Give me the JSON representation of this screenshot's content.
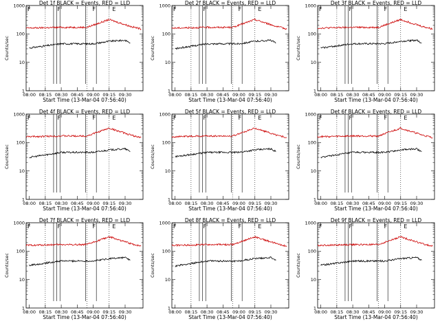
{
  "chart_data": [
    {
      "type": "line",
      "title": "Det 1f BLACK = Events, RED = LLD",
      "xlabel": "Start Time (13-Mar-04 07:56:40)",
      "ylabel": "Counts/sec",
      "x_ticks": [
        "08:00",
        "08:15",
        "08:30",
        "08:45",
        "09:00",
        "09:15",
        "09:30"
      ],
      "y_ticks": [
        "1",
        "10",
        "100",
        "1000"
      ],
      "yscale": "log",
      "ylim": [
        1,
        1000
      ],
      "flags": [
        "F",
        "F",
        "F",
        "E"
      ],
      "series": [
        {
          "color": "#000000",
          "points": [
            [
              8.0,
              32
            ],
            [
              8.5,
              45
            ],
            [
              9.0,
              45
            ],
            [
              9.25,
              55
            ],
            [
              9.5,
              60
            ],
            [
              9.58,
              48
            ]
          ]
        },
        {
          "color": "#cc0000",
          "points": [
            [
              7.95,
              160
            ],
            [
              8.5,
              170
            ],
            [
              8.9,
              170
            ],
            [
              9.25,
              320
            ],
            [
              9.6,
              180
            ],
            [
              9.75,
              150
            ]
          ]
        }
      ]
    },
    {
      "type": "line",
      "title": "Det 2f BLACK = Events, RED = LLD",
      "xlabel": "Start Time (13-Mar-04 07:56:40)",
      "ylabel": "Counts/sec",
      "x_ticks": [
        "08:00",
        "08:15",
        "08:30",
        "08:45",
        "09:00",
        "09:15",
        "09:30"
      ],
      "y_ticks": [
        "1",
        "10",
        "100",
        "1000"
      ],
      "yscale": "log",
      "ylim": [
        1,
        1000
      ],
      "flags": [
        "F",
        "F",
        "F",
        "E"
      ],
      "series": [
        {
          "color": "#000000",
          "points": [
            [
              8.0,
              30
            ],
            [
              8.5,
              45
            ],
            [
              9.0,
              45
            ],
            [
              9.25,
              55
            ],
            [
              9.5,
              60
            ],
            [
              9.58,
              48
            ]
          ]
        },
        {
          "color": "#cc0000",
          "points": [
            [
              7.95,
              160
            ],
            [
              8.5,
              170
            ],
            [
              8.9,
              170
            ],
            [
              9.25,
              320
            ],
            [
              9.6,
              180
            ],
            [
              9.75,
              150
            ]
          ]
        }
      ]
    },
    {
      "type": "line",
      "title": "Det 3f BLACK = Events, RED = LLD",
      "xlabel": "Start Time (13-Mar-04 07:56:40)",
      "ylabel": "Counts/sec",
      "x_ticks": [
        "08:00",
        "08:15",
        "08:30",
        "08:45",
        "09:00",
        "09:15",
        "09:30"
      ],
      "y_ticks": [
        "1",
        "10",
        "100",
        "1000"
      ],
      "yscale": "log",
      "ylim": [
        1,
        1000
      ],
      "flags": [
        "F",
        "F",
        "F",
        "E"
      ],
      "series": [
        {
          "color": "#000000",
          "points": [
            [
              8.0,
              32
            ],
            [
              8.5,
              45
            ],
            [
              9.0,
              45
            ],
            [
              9.25,
              55
            ],
            [
              9.5,
              60
            ],
            [
              9.58,
              48
            ]
          ]
        },
        {
          "color": "#cc0000",
          "points": [
            [
              7.95,
              160
            ],
            [
              8.5,
              170
            ],
            [
              8.9,
              170
            ],
            [
              9.25,
              320
            ],
            [
              9.6,
              180
            ],
            [
              9.75,
              150
            ]
          ]
        }
      ]
    },
    {
      "type": "line",
      "title": "Det 4f BLACK = Events, RED = LLD",
      "xlabel": "Start Time (13-Mar-04 07:56:40)",
      "ylabel": "Counts/sec",
      "x_ticks": [
        "08:00",
        "08:15",
        "08:30",
        "08:45",
        "09:00",
        "09:15",
        "09:30"
      ],
      "y_ticks": [
        "1",
        "10",
        "100",
        "1000"
      ],
      "yscale": "log",
      "ylim": [
        1,
        1000
      ],
      "flags": [
        "F",
        "F",
        "F",
        "E"
      ],
      "series": [
        {
          "color": "#000000",
          "points": [
            [
              8.0,
              30
            ],
            [
              8.5,
              45
            ],
            [
              9.0,
              45
            ],
            [
              9.25,
              55
            ],
            [
              9.5,
              60
            ],
            [
              9.58,
              48
            ]
          ]
        },
        {
          "color": "#cc0000",
          "points": [
            [
              7.95,
              160
            ],
            [
              8.5,
              170
            ],
            [
              8.9,
              170
            ],
            [
              9.25,
              320
            ],
            [
              9.6,
              180
            ],
            [
              9.75,
              150
            ]
          ]
        }
      ]
    },
    {
      "type": "line",
      "title": "Det 5f BLACK = Events, RED = LLD",
      "xlabel": "Start Time (13-Mar-04 07:56:40)",
      "ylabel": "Counts/sec",
      "x_ticks": [
        "08:00",
        "08:15",
        "08:30",
        "08:45",
        "09:00",
        "09:15",
        "09:30"
      ],
      "y_ticks": [
        "1",
        "10",
        "100",
        "1000"
      ],
      "yscale": "log",
      "ylim": [
        1,
        1000
      ],
      "flags": [
        "F",
        "F",
        "F",
        "E"
      ],
      "series": [
        {
          "color": "#000000",
          "points": [
            [
              8.0,
              32
            ],
            [
              8.5,
              45
            ],
            [
              9.0,
              45
            ],
            [
              9.25,
              55
            ],
            [
              9.5,
              60
            ],
            [
              9.58,
              48
            ]
          ]
        },
        {
          "color": "#cc0000",
          "points": [
            [
              7.95,
              160
            ],
            [
              8.5,
              170
            ],
            [
              8.9,
              170
            ],
            [
              9.25,
              320
            ],
            [
              9.6,
              180
            ],
            [
              9.75,
              150
            ]
          ]
        }
      ]
    },
    {
      "type": "line",
      "title": "Det 6f BLACK = Events, RED = LLD",
      "xlabel": "Start Time (13-Mar-04 07:56:40)",
      "ylabel": "Counts/sec",
      "x_ticks": [
        "08:00",
        "08:15",
        "08:30",
        "08:45",
        "09:00",
        "09:15",
        "09:30"
      ],
      "y_ticks": [
        "1",
        "10",
        "100",
        "1000"
      ],
      "yscale": "log",
      "ylim": [
        1,
        1000
      ],
      "flags": [
        "F",
        "F",
        "F",
        "E"
      ],
      "series": [
        {
          "color": "#000000",
          "points": [
            [
              8.0,
              30
            ],
            [
              8.5,
              45
            ],
            [
              9.0,
              45
            ],
            [
              9.25,
              55
            ],
            [
              9.5,
              60
            ],
            [
              9.58,
              48
            ]
          ]
        },
        {
          "color": "#cc0000",
          "points": [
            [
              7.95,
              160
            ],
            [
              8.5,
              170
            ],
            [
              8.9,
              170
            ],
            [
              9.25,
              320
            ],
            [
              9.6,
              180
            ],
            [
              9.75,
              150
            ]
          ]
        }
      ]
    },
    {
      "type": "line",
      "title": "Det 7f BLACK = Events, RED = LLD",
      "xlabel": "Start Time (13-Mar-04 07:56:40)",
      "ylabel": "Counts/sec",
      "x_ticks": [
        "08:00",
        "08:15",
        "08:30",
        "08:45",
        "09:00",
        "09:15",
        "09:30"
      ],
      "y_ticks": [
        "1",
        "10",
        "100",
        "1000"
      ],
      "yscale": "log",
      "ylim": [
        1,
        1000
      ],
      "flags": [
        "F",
        "F",
        "F",
        "E"
      ],
      "series": [
        {
          "color": "#000000",
          "points": [
            [
              8.0,
              32
            ],
            [
              8.5,
              45
            ],
            [
              9.0,
              45
            ],
            [
              9.25,
              55
            ],
            [
              9.5,
              60
            ],
            [
              9.58,
              48
            ]
          ]
        },
        {
          "color": "#cc0000",
          "points": [
            [
              7.95,
              160
            ],
            [
              8.5,
              170
            ],
            [
              8.9,
              170
            ],
            [
              9.25,
              320
            ],
            [
              9.6,
              180
            ],
            [
              9.75,
              150
            ]
          ]
        }
      ]
    },
    {
      "type": "line",
      "title": "Det 8f BLACK = Events, RED = LLD",
      "xlabel": "Start Time (13-Mar-04 07:56:40)",
      "ylabel": "Counts/sec",
      "x_ticks": [
        "08:00",
        "08:15",
        "08:30",
        "08:45",
        "09:00",
        "09:15",
        "09:30"
      ],
      "y_ticks": [
        "1",
        "10",
        "100",
        "1000"
      ],
      "yscale": "log",
      "ylim": [
        1,
        1000
      ],
      "flags": [
        "F",
        "F",
        "F",
        "E"
      ],
      "series": [
        {
          "color": "#000000",
          "points": [
            [
              8.0,
              30
            ],
            [
              8.5,
              45
            ],
            [
              9.0,
              45
            ],
            [
              9.25,
              55
            ],
            [
              9.5,
              60
            ],
            [
              9.58,
              48
            ]
          ]
        },
        {
          "color": "#cc0000",
          "points": [
            [
              7.95,
              160
            ],
            [
              8.5,
              170
            ],
            [
              8.9,
              170
            ],
            [
              9.25,
              320
            ],
            [
              9.6,
              180
            ],
            [
              9.75,
              150
            ]
          ]
        }
      ]
    },
    {
      "type": "line",
      "title": "Det 9f BLACK = Events, RED = LLD",
      "xlabel": "Start Time (13-Mar-04 07:56:40)",
      "ylabel": "Counts/sec",
      "x_ticks": [
        "08:00",
        "08:15",
        "08:30",
        "08:45",
        "09:00",
        "09:15",
        "09:30"
      ],
      "y_ticks": [
        "1",
        "10",
        "100",
        "1000"
      ],
      "yscale": "log",
      "ylim": [
        1,
        1000
      ],
      "flags": [
        "F",
        "F",
        "F",
        "E"
      ],
      "series": [
        {
          "color": "#000000",
          "points": [
            [
              8.0,
              32
            ],
            [
              8.5,
              45
            ],
            [
              9.0,
              45
            ],
            [
              9.25,
              55
            ],
            [
              9.5,
              60
            ],
            [
              9.58,
              48
            ]
          ]
        },
        {
          "color": "#cc0000",
          "points": [
            [
              7.95,
              160
            ],
            [
              8.5,
              170
            ],
            [
              8.9,
              170
            ],
            [
              9.25,
              320
            ],
            [
              9.6,
              180
            ],
            [
              9.75,
              150
            ]
          ]
        }
      ]
    }
  ]
}
